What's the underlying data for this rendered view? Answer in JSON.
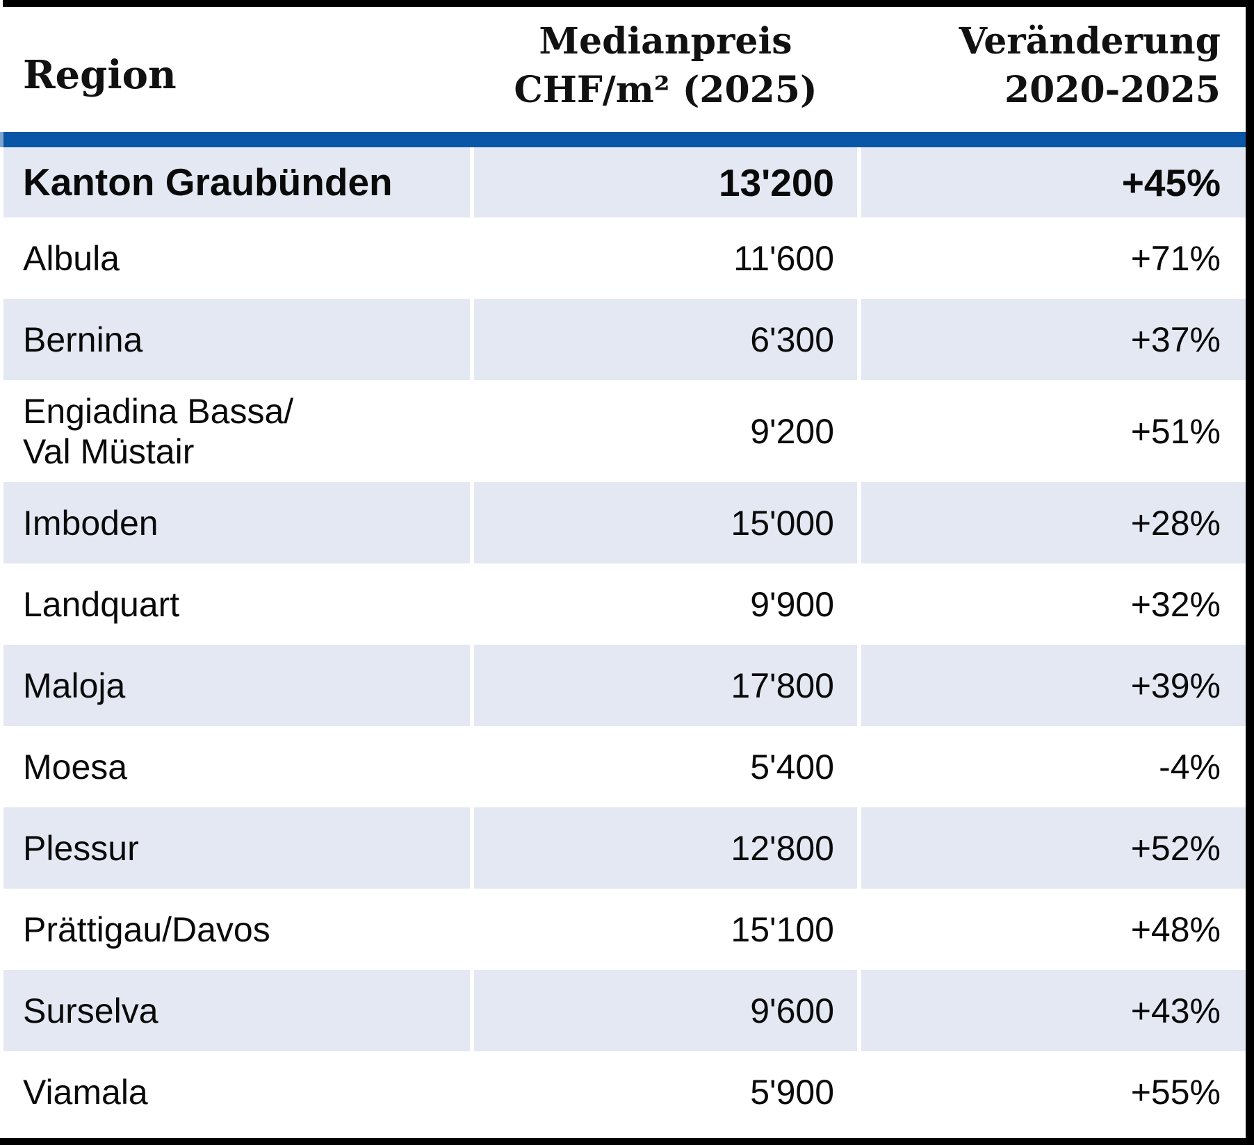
{
  "header": {
    "region": "Region",
    "price_line1": "Medianpreis",
    "price_line2": "CHF/m² (2025)",
    "change_line1": "Veränderung",
    "change_line2": "2020-2025"
  },
  "rows": [
    {
      "region": "Kanton Graubünden",
      "price": "13'200",
      "change": "+45%",
      "emphasis": true
    },
    {
      "region": "Albula",
      "price": "11'600",
      "change": "+71%"
    },
    {
      "region": "Bernina",
      "price": "6'300",
      "change": "+37%"
    },
    {
      "region": "Engiadina Bassa/\nVal Müstair",
      "price": "9'200",
      "change": "+51%"
    },
    {
      "region": "Imboden",
      "price": "15'000",
      "change": "+28%"
    },
    {
      "region": "Landquart",
      "price": "9'900",
      "change": "+32%"
    },
    {
      "region": "Maloja",
      "price": "17'800",
      "change": "+39%"
    },
    {
      "region": "Moesa",
      "price": "5'400",
      "change": "-4%"
    },
    {
      "region": "Plessur",
      "price": "12'800",
      "change": "+52%"
    },
    {
      "region": "Prättigau/Davos",
      "price": "15'100",
      "change": "+48%"
    },
    {
      "region": "Surselva",
      "price": "9'600",
      "change": "+43%"
    },
    {
      "region": "Viamala",
      "price": "5'900",
      "change": "+55%"
    }
  ],
  "colors": {
    "header_bar_blue": "#0956A6",
    "header_bar_left_edge": "#7FA5CD",
    "row_stripe": "#E4E8F3",
    "border_black": "#000000",
    "text": "#0a0a0a"
  },
  "chart_data": {
    "type": "table",
    "title": "",
    "columns": [
      "Region",
      "Medianpreis CHF/m² (2025)",
      "Veränderung 2020-2025"
    ],
    "rows": [
      [
        "Kanton Graubünden",
        13200,
        "+45%"
      ],
      [
        "Albula",
        11600,
        "+71%"
      ],
      [
        "Bernina",
        6300,
        "+37%"
      ],
      [
        "Engiadina Bassa/Val Müstair",
        9200,
        "+51%"
      ],
      [
        "Imboden",
        15000,
        "+28%"
      ],
      [
        "Landquart",
        9900,
        "+32%"
      ],
      [
        "Maloja",
        17800,
        "+39%"
      ],
      [
        "Moesa",
        5400,
        "-4%"
      ],
      [
        "Plessur",
        12800,
        "+52%"
      ],
      [
        "Prättigau/Davos",
        15100,
        "+48%"
      ],
      [
        "Surselva",
        9600,
        "+43%"
      ],
      [
        "Viamala",
        5900,
        "+55%"
      ]
    ],
    "notes": "First row is the cantonal summary row (bold, striped). Alternating light-blue striped rows; values are median transaction prices in CHF per m² for 2025 and percent change 2020-2025."
  }
}
